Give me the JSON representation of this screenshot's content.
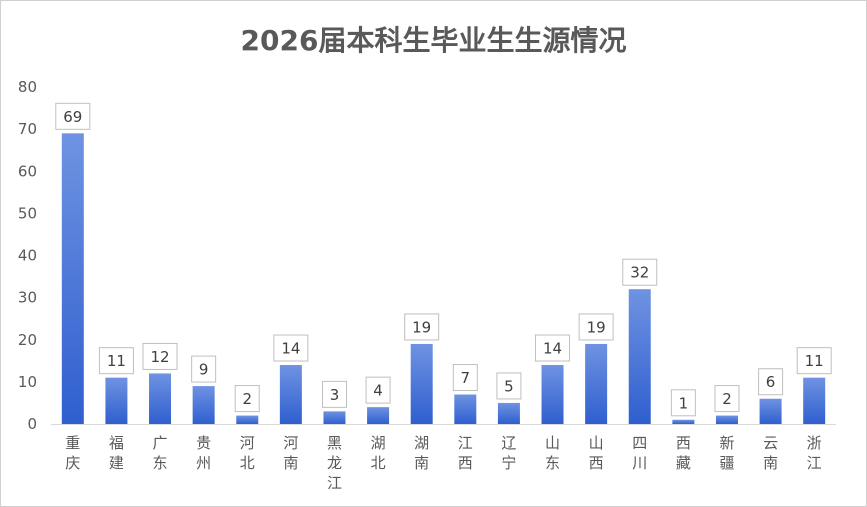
{
  "chart_data": {
    "type": "bar",
    "title": "2026届本科生毕业生生源情况",
    "xlabel": "",
    "ylabel": "",
    "ylim": [
      0,
      80
    ],
    "yticks": [
      0,
      10,
      20,
      30,
      40,
      50,
      60,
      70,
      80
    ],
    "grid": false,
    "legend": "none",
    "bar_color_top": "#6f93e2",
    "bar_color_bottom": "#2f5fcf",
    "categories": [
      "重庆",
      "福建",
      "广东",
      "贵州",
      "河北",
      "河南",
      "黑龙江",
      "湖北",
      "湖南",
      "江西",
      "辽宁",
      "山东",
      "山西",
      "四川",
      "西藏",
      "新疆",
      "云南",
      "浙江"
    ],
    "values": [
      69,
      11,
      12,
      9,
      2,
      14,
      3,
      4,
      19,
      7,
      5,
      14,
      19,
      32,
      1,
      2,
      6,
      11
    ]
  }
}
